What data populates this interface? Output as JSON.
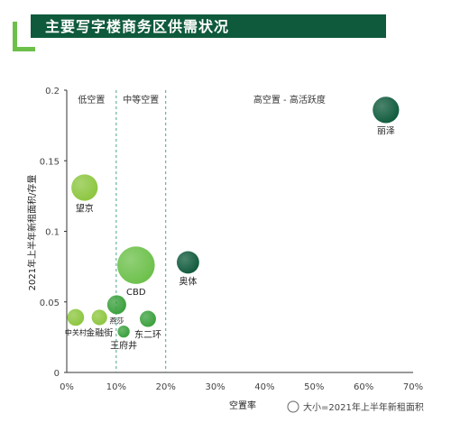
{
  "header": {
    "title": "主要写字楼商务区供需状况"
  },
  "chart_data": {
    "type": "scatter",
    "title": "主要写字楼商务区供需状况",
    "xlabel": "空置率",
    "ylabel": "2021年上半年新租面积/存量",
    "xlim": [
      0,
      0.7
    ],
    "ylim": [
      0,
      0.2
    ],
    "x_ticks": [
      "0%",
      "10%",
      "20%",
      "30%",
      "40%",
      "50%",
      "60%",
      "70%"
    ],
    "y_ticks": [
      "0",
      "0.05",
      "0.1",
      "0.15",
      "0.2"
    ],
    "zones": [
      "低空置",
      "中等空置",
      "高空置 - 高活跃度"
    ],
    "legend": "大小=2021年上半年新租面积",
    "points": [
      {
        "name": "丽泽",
        "x": 0.645,
        "y": 0.186,
        "size": 1.6,
        "color": "#0f5a3c"
      },
      {
        "name": "望京",
        "x": 0.036,
        "y": 0.131,
        "size": 1.6,
        "color": "#8cc63f"
      },
      {
        "name": "CBD",
        "x": 0.14,
        "y": 0.076,
        "size": 4.0,
        "color": "#6cc04a"
      },
      {
        "name": "奥体",
        "x": 0.245,
        "y": 0.078,
        "size": 1.0,
        "color": "#0f5a3c"
      },
      {
        "name": "燕莎",
        "x": 0.101,
        "y": 0.048,
        "size": 0.6,
        "color": "#3aa03c"
      },
      {
        "name": "中关村",
        "x": 0.018,
        "y": 0.039,
        "size": 0.4,
        "color": "#8cc63f"
      },
      {
        "name": "金融街",
        "x": 0.066,
        "y": 0.039,
        "size": 0.3,
        "color": "#8cc63f"
      },
      {
        "name": "王府井",
        "x": 0.115,
        "y": 0.029,
        "size": 0.1,
        "color": "#3aa03c"
      },
      {
        "name": "东二环",
        "x": 0.164,
        "y": 0.038,
        "size": 0.35,
        "color": "#3aa03c"
      }
    ]
  }
}
